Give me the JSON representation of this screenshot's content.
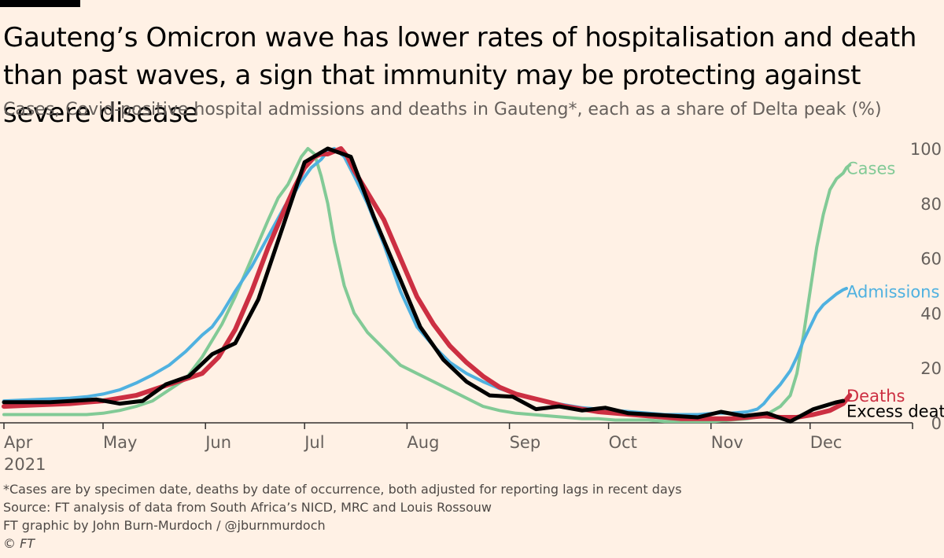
{
  "header": {
    "title": "Gauteng’s Omicron wave has lower rates of hospitalisation and death than past waves, a sign that immunity may be protecting against severe disease",
    "subtitle": "Cases, Covid-positive hospital admissions and deaths in Gauteng*, each as a share of Delta peak (%)"
  },
  "footer": {
    "note": "*Cases are by specimen date, deaths by date of occurrence, both adjusted for reporting lags in recent days",
    "source": "Source: FT analysis of data from South Africa’s NICD, MRC and Louis Rossouw",
    "credit": "FT graphic by John Burn-Murdoch / @jburnmurdoch",
    "copyright": "© FT"
  },
  "chart_data": {
    "type": "line",
    "title": "Cases, Covid-positive hospital admissions and deaths in Gauteng*, each as a share of Delta peak (%)",
    "xlabel": "",
    "ylabel": "",
    "x_unit": "days since 1 Apr 2021",
    "xlim": [
      0,
      275
    ],
    "ylim": [
      0,
      100
    ],
    "y_ticks": [
      0,
      20,
      40,
      60,
      80,
      100
    ],
    "y_axis_side": "right",
    "grid": false,
    "x_ticks": [
      {
        "x": 0,
        "label": "Apr",
        "sublabel": "2021"
      },
      {
        "x": 30,
        "label": "May"
      },
      {
        "x": 61,
        "label": "Jun"
      },
      {
        "x": 91,
        "label": "Jul"
      },
      {
        "x": 122,
        "label": "Aug"
      },
      {
        "x": 153,
        "label": "Sep"
      },
      {
        "x": 183,
        "label": "Oct"
      },
      {
        "x": 214,
        "label": "Nov"
      },
      {
        "x": 244,
        "label": "Dec"
      }
    ],
    "series": [
      {
        "name": "Cases",
        "color": "#82ca96",
        "width": 4,
        "label_x": 255,
        "label_y": 93,
        "x": [
          0,
          10,
          20,
          25,
          30,
          35,
          40,
          45,
          50,
          55,
          60,
          63,
          66,
          70,
          75,
          80,
          83,
          86,
          88,
          90,
          92,
          94,
          96,
          98,
          100,
          103,
          106,
          110,
          115,
          120,
          125,
          130,
          135,
          140,
          145,
          150,
          155,
          160,
          165,
          170,
          175,
          180,
          185,
          190,
          195,
          200,
          205,
          210,
          215,
          220,
          225,
          230,
          235,
          238,
          240,
          242,
          244,
          246,
          248,
          250,
          252,
          254,
          255,
          256
        ],
        "y": [
          3,
          3,
          3,
          3,
          3.5,
          4.5,
          6,
          8,
          12,
          16,
          24,
          30,
          36,
          46,
          60,
          74,
          82,
          87,
          92,
          97,
          100,
          98,
          90,
          80,
          66,
          50,
          40,
          33,
          27,
          21,
          18,
          15,
          12,
          9,
          6,
          4.5,
          3.5,
          3,
          2.5,
          2,
          1.5,
          1.5,
          1,
          1,
          1,
          0.5,
          0.5,
          0.5,
          0.5,
          1,
          1.5,
          2.5,
          6,
          10,
          18,
          32,
          48,
          64,
          76,
          85,
          89,
          91,
          93,
          94
        ]
      },
      {
        "name": "Admissions",
        "color": "#4fb1e0",
        "width": 4,
        "label_x": 255,
        "label_y": 48,
        "x": [
          0,
          10,
          20,
          25,
          30,
          35,
          40,
          45,
          50,
          55,
          60,
          63,
          66,
          70,
          75,
          80,
          85,
          88,
          90,
          93,
          96,
          98,
          100,
          103,
          106,
          110,
          115,
          120,
          125,
          130,
          135,
          140,
          145,
          150,
          155,
          160,
          165,
          170,
          175,
          180,
          185,
          190,
          195,
          200,
          205,
          210,
          215,
          220,
          225,
          228,
          230,
          232,
          235,
          238,
          240,
          242,
          244,
          246,
          248,
          250,
          252,
          254,
          255
        ],
        "y": [
          8,
          8.5,
          9,
          9.5,
          10.5,
          12,
          14.5,
          17.5,
          21,
          26,
          32,
          35,
          40,
          48,
          57,
          68,
          79,
          84,
          88,
          93,
          96,
          99,
          100,
          97,
          90,
          80,
          65,
          48,
          35,
          28,
          22,
          18,
          15,
          12.5,
          10.5,
          9,
          7.5,
          6.5,
          5.5,
          5,
          4.5,
          4,
          3.5,
          3,
          3,
          3,
          3.5,
          3.5,
          4,
          5,
          7,
          10,
          14,
          19,
          24,
          30,
          35,
          40,
          43,
          45,
          47,
          48.5,
          49
        ]
      },
      {
        "name": "Deaths",
        "color": "#cc2f42",
        "width": 6,
        "label_x": 255,
        "label_y": 10,
        "x": [
          0,
          10,
          20,
          25,
          30,
          35,
          40,
          45,
          50,
          55,
          60,
          65,
          70,
          75,
          80,
          85,
          88,
          91,
          94,
          96,
          98,
          100,
          102,
          104,
          106,
          108,
          110,
          115,
          120,
          125,
          130,
          135,
          140,
          145,
          150,
          155,
          160,
          165,
          170,
          175,
          180,
          185,
          190,
          195,
          200,
          205,
          210,
          215,
          220,
          225,
          230,
          235,
          240,
          245,
          250,
          254,
          256
        ],
        "y": [
          6,
          6.5,
          7,
          7.5,
          8,
          9,
          10,
          12,
          14,
          16,
          18,
          24,
          34,
          48,
          64,
          78,
          86,
          93,
          97,
          98,
          98,
          99,
          100,
          97,
          92,
          88,
          84,
          74,
          60,
          46,
          36,
          28,
          22,
          17,
          13,
          10.5,
          9,
          7.5,
          6,
          5,
          4,
          3.5,
          3,
          2.5,
          2,
          1.5,
          1.5,
          1.5,
          1.5,
          2,
          2.5,
          2,
          2,
          3,
          4.5,
          7,
          10
        ]
      },
      {
        "name": "Excess deaths",
        "color": "#000000",
        "width": 5,
        "label_x": 255,
        "label_y": 4.5,
        "x": [
          0,
          14,
          28,
          35,
          42,
          49,
          56,
          63,
          70,
          77,
          84,
          91,
          98,
          105,
          112,
          119,
          126,
          133,
          140,
          147,
          154,
          161,
          168,
          175,
          182,
          189,
          196,
          203,
          210,
          217,
          224,
          231,
          238,
          245,
          252,
          254
        ],
        "y": [
          7.5,
          7.5,
          8.5,
          7,
          8,
          14,
          17,
          25,
          29,
          45,
          70,
          95,
          100,
          97,
          75,
          55,
          35,
          23,
          15,
          10,
          9.5,
          5,
          6,
          4.5,
          5.5,
          3.5,
          3,
          2.5,
          2,
          4,
          2.5,
          3.5,
          0.5,
          5,
          7.5,
          8
        ]
      }
    ]
  }
}
